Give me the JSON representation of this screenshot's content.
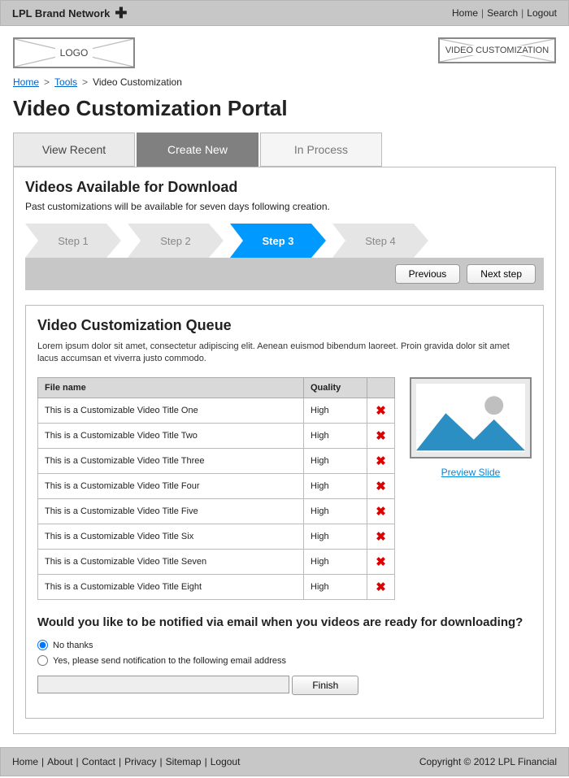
{
  "topbar": {
    "brand": "LPL Brand Network",
    "nav": [
      "Home",
      "Search",
      "Logout"
    ]
  },
  "header": {
    "logo_label": "LOGO",
    "vc_label": "VIDEO CUSTOMIZATION"
  },
  "breadcrumb": {
    "items": [
      {
        "label": "Home",
        "link": true
      },
      {
        "label": "Tools",
        "link": true
      },
      {
        "label": "Video Customization",
        "link": false
      }
    ]
  },
  "page_title": "Video Customization Portal",
  "tabs": [
    {
      "label": "View Recent",
      "state": "inactive"
    },
    {
      "label": "Create New",
      "state": "active"
    },
    {
      "label": "In Process",
      "state": "inactive2"
    }
  ],
  "section": {
    "title": "Videos Available for Download",
    "subtitle": "Past customizations will be available for seven days following creation."
  },
  "stepper": {
    "steps": [
      "Step 1",
      "Step 2",
      "Step 3",
      "Step 4"
    ],
    "active_index": 2,
    "inactive_color": "#e5e5e5",
    "active_color": "#0099ff"
  },
  "nav_buttons": {
    "prev": "Previous",
    "next": "Next step"
  },
  "queue": {
    "title": "Video Customization Queue",
    "desc": "Lorem ipsum dolor sit amet, consectetur adipiscing elit. Aenean euismod bibendum laoreet. Proin gravida dolor sit amet lacus accumsan et viverra justo commodo.",
    "columns": [
      "File name",
      "Quality",
      ""
    ],
    "rows": [
      {
        "name": "This is a Customizable Video Title One",
        "quality": "High"
      },
      {
        "name": "This is a Customizable Video Title Two",
        "quality": "High"
      },
      {
        "name": "This is a Customizable Video Title Three",
        "quality": "High"
      },
      {
        "name": "This is a Customizable Video Title Four",
        "quality": "High"
      },
      {
        "name": "This is a Customizable Video Title Five",
        "quality": "High"
      },
      {
        "name": "This is a Customizable Video Title Six",
        "quality": "High"
      },
      {
        "name": "This is a Customizable Video Title Seven",
        "quality": "High"
      },
      {
        "name": "This is a Customizable Video Title Eight",
        "quality": "High"
      }
    ],
    "delete_glyph": "✖",
    "delete_color": "#dd0000"
  },
  "preview": {
    "link_label": "Preview Slide",
    "mountain_color": "#2b8fc4",
    "sun_color": "#bfbfbf"
  },
  "notify": {
    "question": "Would you like to be notified via email when you videos are ready for downloading?",
    "options": [
      "No thanks",
      "Yes, please send notification to the following email address"
    ],
    "selected_index": 0,
    "finish_label": "Finish"
  },
  "footer": {
    "links": [
      "Home",
      "About",
      "Contact",
      "Privacy",
      "Sitemap",
      "Logout"
    ],
    "copyright": "Copyright © 2012 LPL Financial"
  }
}
